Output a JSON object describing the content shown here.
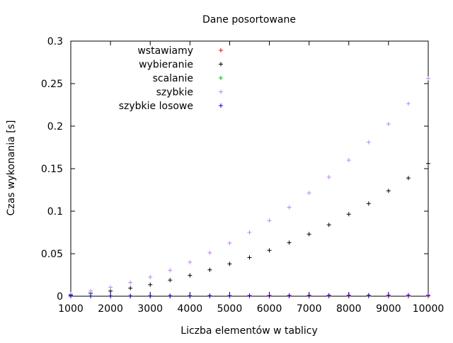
{
  "chart_data": {
    "type": "scatter",
    "title": "Dane posortowane",
    "xlabel": "Liczba elementów w tablicy",
    "ylabel": "Czas wykonania [s]",
    "xlim": [
      1000,
      10000
    ],
    "ylim": [
      0,
      0.3
    ],
    "x_ticks": [
      1000,
      2000,
      3000,
      4000,
      5000,
      6000,
      7000,
      8000,
      9000,
      10000
    ],
    "x_tick_labels": [
      "1000",
      "2000",
      "3000",
      "4000",
      "5000",
      "6000",
      "7000",
      "8000",
      "9000",
      "10000"
    ],
    "y_ticks": [
      0,
      0.05,
      0.1,
      0.15,
      0.2,
      0.25,
      0.3
    ],
    "y_tick_labels": [
      "0",
      "0.05",
      "0.1",
      "0.15",
      "0.2",
      "0.25",
      "0.3"
    ],
    "grid": false,
    "legend_position": "top-left",
    "marker": "+",
    "x": [
      1000,
      1500,
      2000,
      2500,
      3000,
      3500,
      4000,
      4500,
      5000,
      5500,
      6000,
      6500,
      7000,
      7500,
      8000,
      8500,
      9000,
      9500,
      10000
    ],
    "series": [
      {
        "name": "wstawiamy",
        "color": "#ff0000",
        "values": [
          0,
          0,
          0,
          0,
          0,
          0,
          0,
          0,
          0,
          0,
          0,
          0,
          0,
          0,
          0,
          0,
          0,
          0,
          0
        ]
      },
      {
        "name": "wybieranie",
        "color": "#000000",
        "values": [
          0.0015,
          0.0035,
          0.006,
          0.0095,
          0.0135,
          0.019,
          0.0245,
          0.031,
          0.038,
          0.0455,
          0.054,
          0.063,
          0.073,
          0.084,
          0.0965,
          0.109,
          0.124,
          0.139,
          0.156
        ]
      },
      {
        "name": "scalanie",
        "color": "#00c000",
        "values": [
          0.0002,
          0.0003,
          0.0003,
          0.0004,
          0.0005,
          0.0005,
          0.0006,
          0.0006,
          0.0007,
          0.0008,
          0.0008,
          0.0009,
          0.001,
          0.001,
          0.0011,
          0.0011,
          0.0012,
          0.0013,
          0.0013
        ]
      },
      {
        "name": "szybkie",
        "color": "#c080ff",
        "values": [
          0.0025,
          0.006,
          0.0105,
          0.016,
          0.0225,
          0.0305,
          0.04,
          0.051,
          0.0625,
          0.075,
          0.089,
          0.1045,
          0.1215,
          0.14,
          0.16,
          0.181,
          0.2025,
          0.2265,
          0.256
        ]
      },
      {
        "name": "szybkie losowe",
        "color": "#0000ff",
        "values": [
          0.0002,
          0.0002,
          0.0003,
          0.0004,
          0.0004,
          0.0005,
          0.0005,
          0.0006,
          0.0007,
          0.0007,
          0.0008,
          0.0008,
          0.0009,
          0.001,
          0.001,
          0.0011,
          0.0011,
          0.0012,
          0.0013
        ]
      }
    ]
  }
}
